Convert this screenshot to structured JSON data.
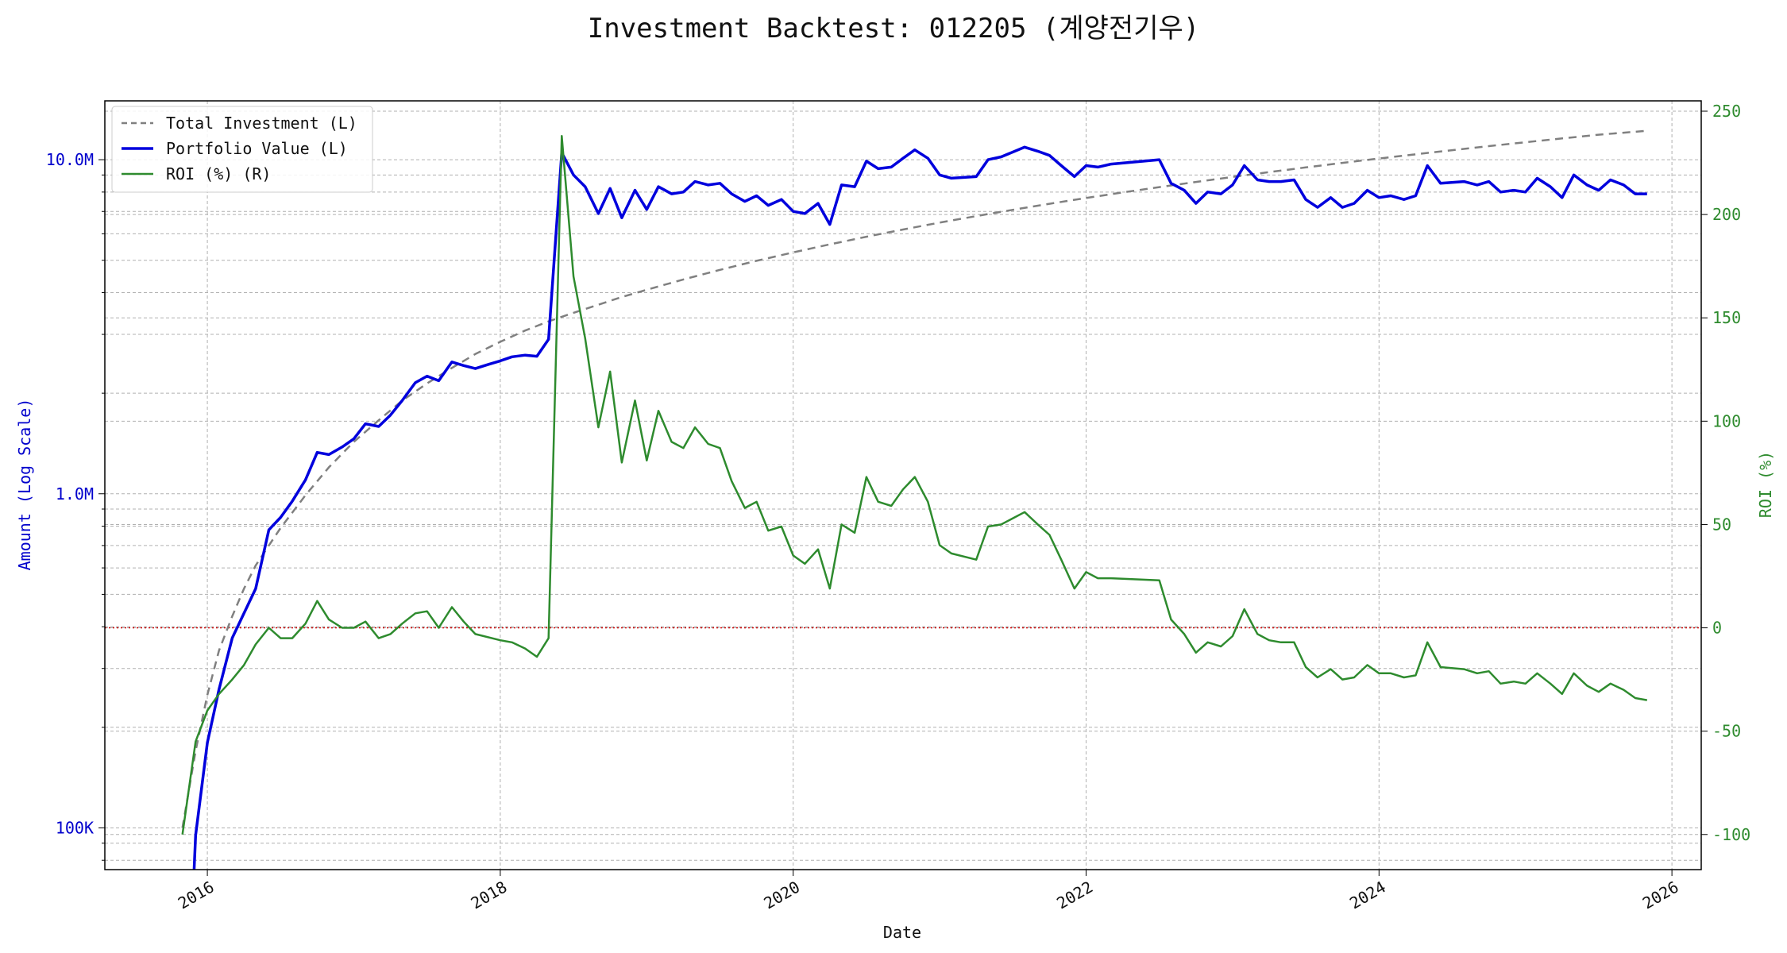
{
  "chart_data": {
    "type": "line",
    "title": "Investment Backtest: 012205 (계양전기우)",
    "xlabel": "Date",
    "ylabel_left": "Amount (Log Scale)",
    "ylabel_right": "ROI (%)",
    "left_scale": "log",
    "left_ylim": [
      75000,
      15000000
    ],
    "right_ylim": [
      -117,
      255
    ],
    "xlim": [
      2015.3,
      2026.2
    ],
    "grid": true,
    "legend_position": "upper-left",
    "left_ticks": [
      {
        "value": 100000,
        "label": "100K"
      },
      {
        "value": 1000000,
        "label": "1.0M"
      },
      {
        "value": 10000000,
        "label": "10.0M"
      }
    ],
    "right_ticks": [
      {
        "value": -100,
        "label": "-100"
      },
      {
        "value": -50,
        "label": "-50"
      },
      {
        "value": 0,
        "label": "0"
      },
      {
        "value": 50,
        "label": "50"
      },
      {
        "value": 100,
        "label": "100"
      },
      {
        "value": 150,
        "label": "150"
      },
      {
        "value": 200,
        "label": "200"
      },
      {
        "value": 250,
        "label": "250"
      }
    ],
    "x_ticks": [
      {
        "value": 2016,
        "label": "2016"
      },
      {
        "value": 2018,
        "label": "2018"
      },
      {
        "value": 2020,
        "label": "2020"
      },
      {
        "value": 2022,
        "label": "2022"
      },
      {
        "value": 2024,
        "label": "2024"
      },
      {
        "value": 2026,
        "label": "2026"
      }
    ],
    "zero_line_roi": 0,
    "colors": {
      "total_investment": "#808080",
      "portfolio_value": "#0000dd",
      "roi": "#2e8b2e",
      "zero_line": "#cc0000",
      "left_axis": "#0000cc",
      "right_axis": "#2e8b2e"
    },
    "series": [
      {
        "name": "Total Investment (L)",
        "axis": "left",
        "style": "dashed",
        "x": [
          2015.83,
          2015.92,
          2016.0,
          2016.08,
          2016.17,
          2016.25,
          2016.33,
          2016.42,
          2016.5,
          2016.67,
          2016.83,
          2017.0,
          2017.17,
          2017.33,
          2017.5,
          2017.67,
          2017.83,
          2018.0,
          2018.17,
          2018.33,
          2018.5,
          2018.67,
          2018.83,
          2019.0,
          2019.25,
          2019.5,
          2019.75,
          2020.0,
          2020.25,
          2020.5,
          2020.75,
          2021.0,
          2021.25,
          2021.5,
          2021.75,
          2022.0,
          2022.25,
          2022.5,
          2022.75,
          2023.0,
          2023.25,
          2023.5,
          2023.75,
          2024.0,
          2024.25,
          2024.5,
          2024.75,
          2025.0,
          2025.25,
          2025.5,
          2025.83
        ],
        "values": [
          100000,
          170000,
          250000,
          340000,
          430000,
          520000,
          610000,
          700000,
          790000,
          990000,
          1200000,
          1430000,
          1660000,
          1900000,
          2140000,
          2380000,
          2620000,
          2850000,
          3080000,
          3280000,
          3480000,
          3680000,
          3880000,
          4080000,
          4380000,
          4680000,
          4980000,
          5280000,
          5580000,
          5880000,
          6180000,
          6480000,
          6780000,
          7080000,
          7380000,
          7680000,
          7980000,
          8280000,
          8580000,
          8880000,
          9180000,
          9480000,
          9780000,
          10080000,
          10380000,
          10680000,
          10980000,
          11280000,
          11580000,
          11880000,
          12200000
        ]
      },
      {
        "name": "Portfolio Value (L)",
        "axis": "left",
        "style": "solid",
        "x": [
          2015.9,
          2015.92,
          2016.0,
          2016.08,
          2016.17,
          2016.33,
          2016.42,
          2016.5,
          2016.58,
          2016.67,
          2016.75,
          2016.83,
          2016.92,
          2017.0,
          2017.08,
          2017.17,
          2017.25,
          2017.33,
          2017.42,
          2017.5,
          2017.58,
          2017.67,
          2017.75,
          2017.83,
          2017.92,
          2018.0,
          2018.08,
          2018.17,
          2018.25,
          2018.33,
          2018.42,
          2018.5,
          2018.58,
          2018.67,
          2018.75,
          2018.83,
          2018.92,
          2019.0,
          2019.08,
          2019.17,
          2019.25,
          2019.33,
          2019.42,
          2019.5,
          2019.58,
          2019.67,
          2019.75,
          2019.83,
          2019.92,
          2020.0,
          2020.08,
          2020.17,
          2020.25,
          2020.33,
          2020.42,
          2020.5,
          2020.58,
          2020.67,
          2020.75,
          2020.83,
          2020.92,
          2021.0,
          2021.08,
          2021.25,
          2021.33,
          2021.42,
          2021.58,
          2021.67,
          2021.75,
          2021.83,
          2021.92,
          2022.0,
          2022.08,
          2022.17,
          2022.5,
          2022.58,
          2022.67,
          2022.75,
          2022.83,
          2022.92,
          2023.0,
          2023.08,
          2023.17,
          2023.25,
          2023.33,
          2023.42,
          2023.5,
          2023.58,
          2023.67,
          2023.75,
          2023.83,
          2023.92,
          2024.0,
          2024.08,
          2024.17,
          2024.25,
          2024.33,
          2024.42,
          2024.58,
          2024.67,
          2024.75,
          2024.83,
          2024.92,
          2025.0,
          2025.08,
          2025.17,
          2025.25,
          2025.33,
          2025.42,
          2025.5,
          2025.58,
          2025.67,
          2025.75,
          2025.83
        ],
        "values": [
          60000,
          95000,
          180000,
          260000,
          370000,
          520000,
          780000,
          850000,
          950000,
          1100000,
          1330000,
          1310000,
          1380000,
          1460000,
          1620000,
          1590000,
          1720000,
          1900000,
          2150000,
          2250000,
          2180000,
          2480000,
          2420000,
          2370000,
          2440000,
          2500000,
          2570000,
          2600000,
          2580000,
          2900000,
          10500000,
          9000000,
          8300000,
          6900000,
          8200000,
          6700000,
          8100000,
          7100000,
          8300000,
          7900000,
          8000000,
          8600000,
          8400000,
          8500000,
          7900000,
          7500000,
          7800000,
          7300000,
          7600000,
          7000000,
          6900000,
          7400000,
          6400000,
          8400000,
          8300000,
          9900000,
          9400000,
          9500000,
          10100000,
          10700000,
          10100000,
          9000000,
          8800000,
          8900000,
          10000000,
          10200000,
          10900000,
          10600000,
          10300000,
          9600000,
          8900000,
          9600000,
          9500000,
          9700000,
          10000000,
          8500000,
          8100000,
          7400000,
          8000000,
          7900000,
          8400000,
          9600000,
          8700000,
          8600000,
          8600000,
          8700000,
          7600000,
          7200000,
          7700000,
          7200000,
          7400000,
          8100000,
          7700000,
          7800000,
          7600000,
          7800000,
          9600000,
          8500000,
          8600000,
          8400000,
          8600000,
          8000000,
          8100000,
          8000000,
          8800000,
          8300000,
          7700000,
          9000000,
          8400000,
          8100000,
          8700000,
          8400000,
          7900000,
          7900000
        ]
      },
      {
        "name": "ROI (%) (R)",
        "axis": "right",
        "style": "solid",
        "x": [
          2015.83,
          2015.92,
          2016.0,
          2016.08,
          2016.17,
          2016.25,
          2016.33,
          2016.42,
          2016.5,
          2016.58,
          2016.67,
          2016.75,
          2016.83,
          2016.92,
          2017.0,
          2017.08,
          2017.17,
          2017.25,
          2017.33,
          2017.42,
          2017.5,
          2017.58,
          2017.67,
          2017.75,
          2017.83,
          2018.0,
          2018.08,
          2018.17,
          2018.25,
          2018.33,
          2018.42,
          2018.5,
          2018.58,
          2018.67,
          2018.75,
          2018.83,
          2018.92,
          2019.0,
          2019.08,
          2019.17,
          2019.25,
          2019.33,
          2019.42,
          2019.5,
          2019.58,
          2019.67,
          2019.75,
          2019.83,
          2019.92,
          2020.0,
          2020.08,
          2020.17,
          2020.25,
          2020.33,
          2020.42,
          2020.5,
          2020.58,
          2020.67,
          2020.75,
          2020.83,
          2020.92,
          2021.0,
          2021.08,
          2021.25,
          2021.33,
          2021.42,
          2021.5,
          2021.58,
          2021.67,
          2021.75,
          2021.83,
          2021.92,
          2022.0,
          2022.08,
          2022.17,
          2022.5,
          2022.58,
          2022.67,
          2022.75,
          2022.83,
          2022.92,
          2023.0,
          2023.08,
          2023.17,
          2023.25,
          2023.33,
          2023.42,
          2023.5,
          2023.58,
          2023.67,
          2023.75,
          2023.83,
          2023.92,
          2024.0,
          2024.08,
          2024.17,
          2024.25,
          2024.33,
          2024.42,
          2024.58,
          2024.67,
          2024.75,
          2024.83,
          2024.92,
          2025.0,
          2025.08,
          2025.17,
          2025.25,
          2025.33,
          2025.42,
          2025.5,
          2025.58,
          2025.67,
          2025.75,
          2025.83
        ],
        "values": [
          -100,
          -55,
          -40,
          -32,
          -25,
          -18,
          -8,
          0,
          -5,
          -5,
          2,
          13,
          4,
          0,
          0,
          3,
          -5,
          -3,
          2,
          7,
          8,
          0,
          10,
          3,
          -3,
          -6,
          -7,
          -10,
          -14,
          -5,
          238,
          170,
          140,
          97,
          124,
          80,
          110,
          81,
          105,
          90,
          87,
          97,
          89,
          87,
          71,
          58,
          61,
          47,
          49,
          35,
          31,
          38,
          19,
          50,
          46,
          73,
          61,
          59,
          67,
          73,
          61,
          40,
          36,
          33,
          49,
          50,
          53,
          56,
          50,
          45,
          33,
          19,
          27,
          24,
          24,
          23,
          4,
          -3,
          -12,
          -7,
          -9,
          -4,
          9,
          -3,
          -6,
          -7,
          -7,
          -19,
          -24,
          -20,
          -25,
          -24,
          -18,
          -22,
          -22,
          -24,
          -23,
          -7,
          -19,
          -20,
          -22,
          -21,
          -27,
          -26,
          -27,
          -22,
          -27,
          -32,
          -22,
          -28,
          -31,
          -27,
          -30,
          -34,
          -35
        ]
      }
    ]
  }
}
